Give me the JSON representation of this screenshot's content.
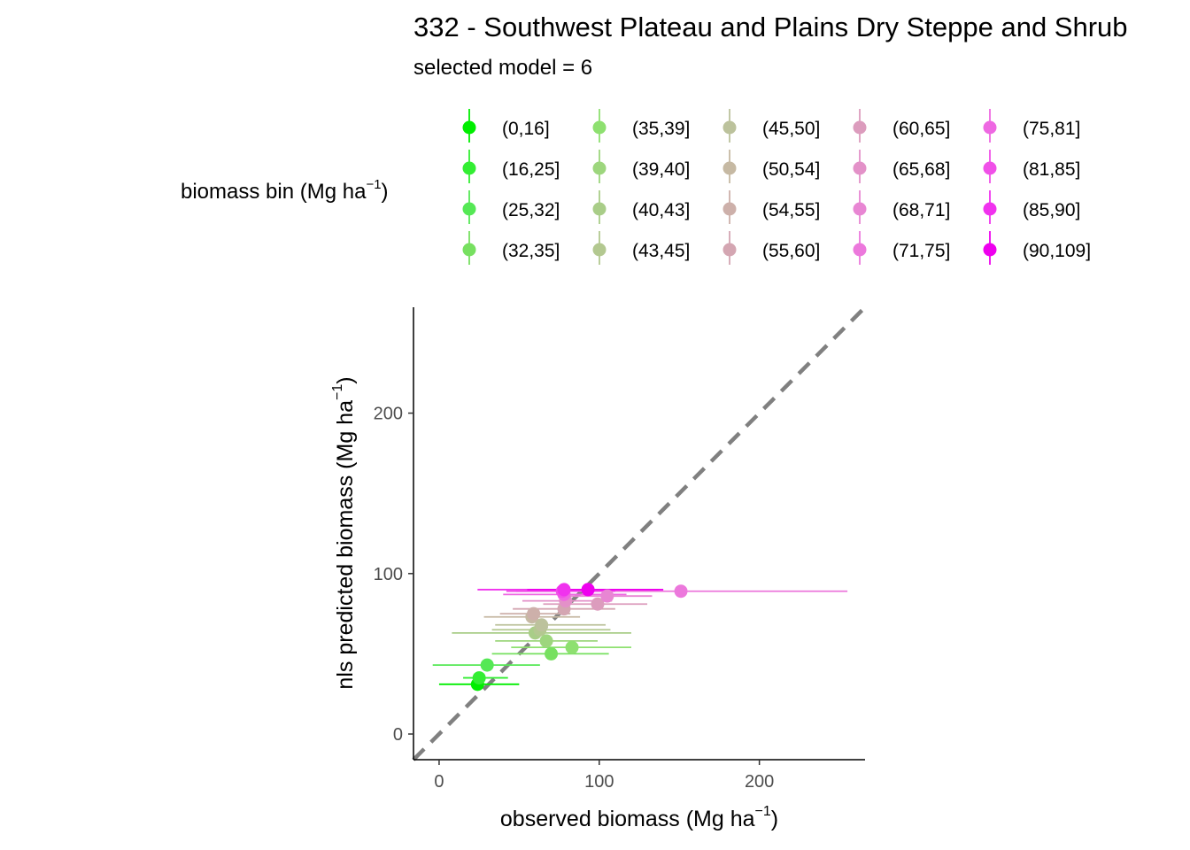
{
  "chart_data": {
    "type": "scatter",
    "title": "332 - Southwest Plateau and Plains Dry Steppe and Shrub",
    "subtitle": "selected model = 6",
    "xlabel": "observed biomass (Mg ha",
    "ylabel": "nls predicted biomass (Mg ha",
    "label_unit_exponent": "−1",
    "label_close": ")",
    "xlim": [
      -16,
      266
    ],
    "ylim": [
      -16,
      266
    ],
    "x_ticks": [
      0,
      100,
      200
    ],
    "y_ticks": [
      0,
      100,
      200
    ],
    "grid": false,
    "reference_line": {
      "type": "identity",
      "style": "dashed",
      "color": "#808080"
    },
    "legend": {
      "title": "biomass bin (Mg ha",
      "placement": "top",
      "columns": 5,
      "entries": [
        {
          "label": "(0,16]",
          "color": "#00ee00"
        },
        {
          "label": "(16,25]",
          "color": "#33ee33"
        },
        {
          "label": "(25,32]",
          "color": "#55e855"
        },
        {
          "label": "(32,35]",
          "color": "#77e060"
        },
        {
          "label": "(35,39]",
          "color": "#8ee070"
        },
        {
          "label": "(39,40]",
          "color": "#9dd67d"
        },
        {
          "label": "(40,43]",
          "color": "#a9cd88"
        },
        {
          "label": "(43,45]",
          "color": "#b3c890"
        },
        {
          "label": "(45,50]",
          "color": "#bcc29c"
        },
        {
          "label": "(50,54]",
          "color": "#c6b9a3"
        },
        {
          "label": "(54,55]",
          "color": "#cdb0aa"
        },
        {
          "label": "(55,60]",
          "color": "#d4a6b2"
        },
        {
          "label": "(60,65]",
          "color": "#dc9cbd"
        },
        {
          "label": "(65,68]",
          "color": "#e391c8"
        },
        {
          "label": "(68,71]",
          "color": "#e886d3"
        },
        {
          "label": "(71,75]",
          "color": "#ec78dc"
        },
        {
          "label": "(75,81]",
          "color": "#ee68e2"
        },
        {
          "label": "(81,85]",
          "color": "#f050e8"
        },
        {
          "label": "(85,90]",
          "color": "#f032ee"
        },
        {
          "label": "(90,109]",
          "color": "#ee00ee"
        }
      ]
    },
    "points": [
      {
        "bin": "(0,16]",
        "x": 24,
        "y": 31,
        "xmin": 0,
        "xmax": 50
      },
      {
        "bin": "(16,25]",
        "x": 25,
        "y": 35,
        "xmin": 15,
        "xmax": 43
      },
      {
        "bin": "(25,32]",
        "x": 30,
        "y": 43,
        "xmin": -4,
        "xmax": 63
      },
      {
        "bin": "(32,35]",
        "x": 70,
        "y": 50,
        "xmin": 33,
        "xmax": 106
      },
      {
        "bin": "(35,39]",
        "x": 83,
        "y": 54,
        "xmin": 45,
        "xmax": 120
      },
      {
        "bin": "(39,40]",
        "x": 67,
        "y": 58,
        "xmin": 35,
        "xmax": 99
      },
      {
        "bin": "(40,43]",
        "x": 60,
        "y": 63,
        "xmin": 8,
        "xmax": 120
      },
      {
        "bin": "(43,45]",
        "x": 63,
        "y": 65,
        "xmin": 33,
        "xmax": 107
      },
      {
        "bin": "(45,50]",
        "x": 64,
        "y": 68,
        "xmin": 35,
        "xmax": 104
      },
      {
        "bin": "(50,54]",
        "x": 58,
        "y": 73,
        "xmin": 28,
        "xmax": 88
      },
      {
        "bin": "(54,55]",
        "x": 59,
        "y": 75,
        "xmin": 38,
        "xmax": 82
      },
      {
        "bin": "(55,60]",
        "x": 78,
        "y": 78,
        "xmin": 46,
        "xmax": 110
      },
      {
        "bin": "(60,65]",
        "x": 99,
        "y": 81,
        "xmin": 65,
        "xmax": 130
      },
      {
        "bin": "(65,68]",
        "x": 79,
        "y": 83,
        "xmin": 52,
        "xmax": 108
      },
      {
        "bin": "(68,71]",
        "x": 105,
        "y": 86,
        "xmin": 78,
        "xmax": 133
      },
      {
        "bin": "(71,75]",
        "x": 151,
        "y": 89,
        "xmin": 48,
        "xmax": 255
      },
      {
        "bin": "(75,81]",
        "x": 78,
        "y": 87,
        "xmin": 40,
        "xmax": 117
      },
      {
        "bin": "(81,85]",
        "x": 77,
        "y": 89,
        "xmin": 42,
        "xmax": 110
      },
      {
        "bin": "(85,90]",
        "x": 78,
        "y": 90,
        "xmin": 24,
        "xmax": 137
      },
      {
        "bin": "(90,109]",
        "x": 93,
        "y": 90,
        "xmin": 55,
        "xmax": 140
      }
    ]
  }
}
